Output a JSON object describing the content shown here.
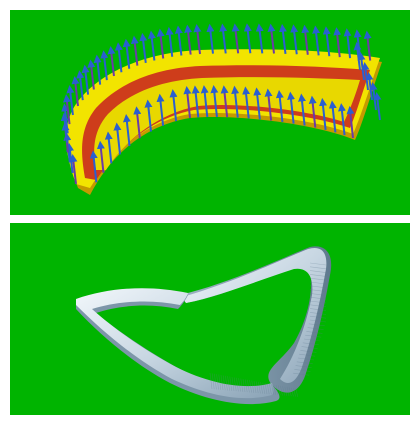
{
  "panels": {
    "top": {
      "background": "#00b400"
    },
    "bottom": {
      "background": "#00b400"
    }
  },
  "colors": {
    "ribbon_yellow": "#f2e400",
    "ribbon_shadow": "#c49a00",
    "ribbon_red": "#c82020",
    "arrow_blue": "#2a5fd0",
    "arrow_purple": "#6a3aa8",
    "band_light": "#e4eef6",
    "band_mid": "#b3c6d6",
    "band_dark": "#6f8a9e"
  },
  "icons": {
    "top": "ribbon-with-normal-vectors",
    "bottom": "twisted-band-surface"
  }
}
